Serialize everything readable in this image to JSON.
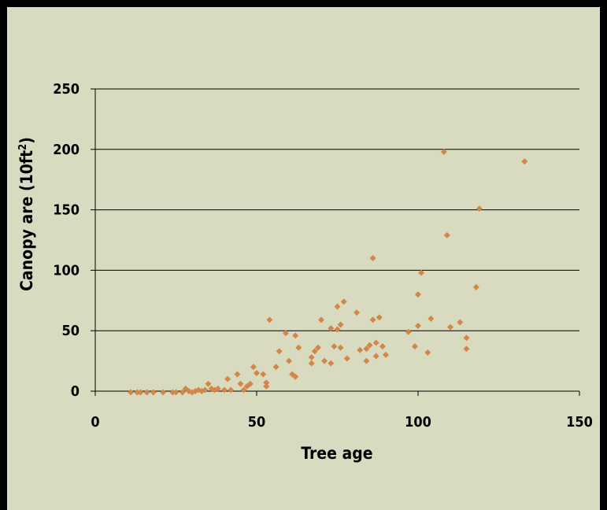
{
  "chart_data": {
    "type": "scatter",
    "title": "",
    "xlabel": "Tree age",
    "ylabel_main": "Canopy are (10ft",
    "ylabel_sup": "2",
    "ylabel_end": ")",
    "xlim": [
      0,
      150
    ],
    "ylim": [
      0,
      250
    ],
    "xticks": [
      0,
      50,
      100,
      150
    ],
    "yticks": [
      0,
      50,
      100,
      150,
      200,
      250
    ],
    "grid": "horizontal",
    "legend": "none",
    "marker": "diamond",
    "colors": {
      "marker": "#d2874a",
      "background": "#d8dbbf",
      "frame": "#000000"
    },
    "points": [
      [
        11,
        -1
      ],
      [
        13,
        -1
      ],
      [
        14,
        -1
      ],
      [
        16,
        -1
      ],
      [
        18,
        -1
      ],
      [
        21,
        -1
      ],
      [
        24,
        -1
      ],
      [
        25,
        -1
      ],
      [
        27,
        -1
      ],
      [
        28,
        2
      ],
      [
        29,
        0
      ],
      [
        30,
        -1
      ],
      [
        31,
        0
      ],
      [
        32,
        1
      ],
      [
        33,
        0
      ],
      [
        34,
        1
      ],
      [
        35,
        6
      ],
      [
        36,
        2
      ],
      [
        37,
        1
      ],
      [
        38,
        2
      ],
      [
        40,
        1
      ],
      [
        41,
        10
      ],
      [
        42,
        1
      ],
      [
        44,
        14
      ],
      [
        45,
        6
      ],
      [
        46,
        1
      ],
      [
        47,
        4
      ],
      [
        48,
        6
      ],
      [
        49,
        20
      ],
      [
        50,
        15
      ],
      [
        52,
        14
      ],
      [
        53,
        7
      ],
      [
        53,
        4
      ],
      [
        54,
        59
      ],
      [
        56,
        20
      ],
      [
        57,
        33
      ],
      [
        59,
        48
      ],
      [
        60,
        25
      ],
      [
        61,
        14
      ],
      [
        62,
        12
      ],
      [
        62,
        46
      ],
      [
        63,
        36
      ],
      [
        67,
        23
      ],
      [
        67,
        28
      ],
      [
        68,
        33
      ],
      [
        69,
        36
      ],
      [
        70,
        59
      ],
      [
        71,
        25
      ],
      [
        73,
        23
      ],
      [
        73,
        52
      ],
      [
        74,
        37
      ],
      [
        75,
        51
      ],
      [
        75,
        70
      ],
      [
        76,
        36
      ],
      [
        76,
        55
      ],
      [
        77,
        74
      ],
      [
        78,
        27
      ],
      [
        81,
        65
      ],
      [
        82,
        34
      ],
      [
        84,
        35
      ],
      [
        84,
        25
      ],
      [
        85,
        38
      ],
      [
        86,
        110
      ],
      [
        86,
        59
      ],
      [
        87,
        29
      ],
      [
        87,
        40
      ],
      [
        88,
        61
      ],
      [
        89,
        37
      ],
      [
        90,
        30
      ],
      [
        97,
        49
      ],
      [
        99,
        37
      ],
      [
        100,
        54
      ],
      [
        100,
        80
      ],
      [
        101,
        98
      ],
      [
        103,
        32
      ],
      [
        104,
        60
      ],
      [
        108,
        198
      ],
      [
        109,
        129
      ],
      [
        110,
        53
      ],
      [
        113,
        57
      ],
      [
        115,
        35
      ],
      [
        115,
        44
      ],
      [
        118,
        86
      ],
      [
        119,
        151
      ],
      [
        133,
        190
      ]
    ]
  }
}
